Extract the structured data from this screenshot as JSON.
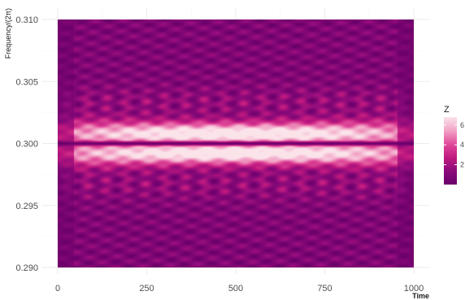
{
  "chart_data": {
    "type": "heatmap",
    "xlabel": "Time",
    "ylabel": "Frequency/(2π)",
    "xlim": [
      0,
      1000
    ],
    "ylim": [
      0.29,
      0.31
    ],
    "x_ticks": [
      0,
      250,
      500,
      750,
      1000
    ],
    "y_ticks": [
      0.29,
      0.295,
      0.3,
      0.305,
      0.31
    ],
    "x_tick_labels": [
      "0",
      "250",
      "500",
      "750",
      "1000"
    ],
    "y_tick_labels": [
      "0.290",
      "0.295",
      "0.300",
      "0.305",
      "0.310"
    ],
    "grid": true,
    "legend": {
      "title": "Z",
      "placement": "right",
      "ticks": [
        2,
        4,
        6
      ],
      "tick_labels": [
        "2",
        "4",
        "6"
      ],
      "range": [
        0,
        6.8
      ]
    },
    "colormap": [
      "#6a006a",
      "#8b0a7a",
      "#c0197f",
      "#e04a9a",
      "#f2a3c6",
      "#fbe3ea"
    ],
    "description_values": {
      "center_frequency": 0.3,
      "peak_value": 6.8,
      "center_line_value": 0.3
    }
  }
}
